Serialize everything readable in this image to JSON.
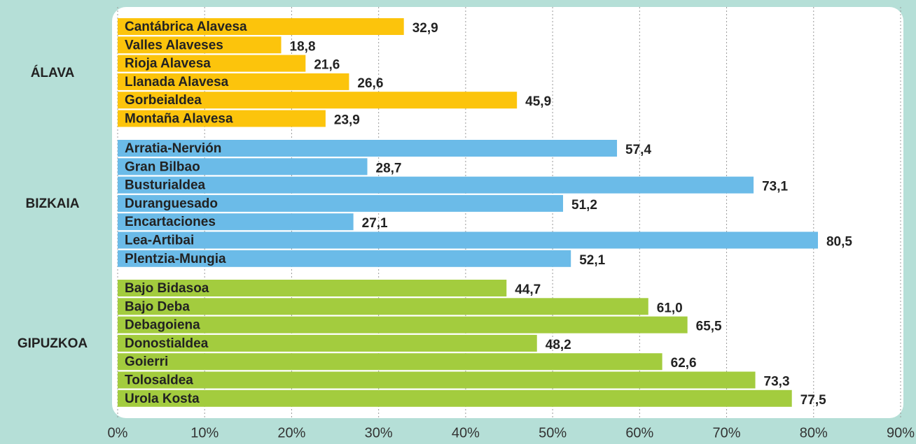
{
  "chart_data": {
    "type": "bar",
    "orientation": "horizontal",
    "groups": [
      {
        "name": "ÁLAVA",
        "color": "#fcc40c",
        "categories": [
          "Cantábrica Alavesa",
          "Valles Alaveses",
          "Rioja Alavesa",
          "Llanada Alavesa",
          "Gorbeialdea",
          "Montaña Alavesa"
        ],
        "values": [
          32.9,
          18.8,
          21.6,
          26.6,
          45.9,
          23.9
        ],
        "value_labels": [
          "32,9",
          "18,8",
          "21,6",
          "26,6",
          "45,9",
          "23,9"
        ]
      },
      {
        "name": "BIZKAIA",
        "color": "#6bbbe8",
        "categories": [
          "Arratia-Nervión",
          "Gran Bilbao",
          "Busturialdea",
          "Duranguesado",
          "Encartaciones",
          "Lea-Artibai",
          "Plentzia-Mungia"
        ],
        "values": [
          57.4,
          28.7,
          73.1,
          51.2,
          27.1,
          80.5,
          52.1
        ],
        "value_labels": [
          "57,4",
          "28,7",
          "73,1",
          "51,2",
          "27,1",
          "80,5",
          "52,1"
        ]
      },
      {
        "name": "GIPUZKOA",
        "color": "#a3cc3e",
        "categories": [
          "Bajo Bidasoa",
          "Bajo Deba",
          "Debagoiena",
          "Donostialdea",
          "Goierri",
          "Tolosaldea",
          "Urola Kosta"
        ],
        "values": [
          44.7,
          61.0,
          65.5,
          48.2,
          62.6,
          73.3,
          77.5
        ],
        "value_labels": [
          "44,7",
          "61,0",
          "65,5",
          "48,2",
          "62,6",
          "73,3",
          "77,5"
        ]
      }
    ],
    "xlim": [
      0,
      90
    ],
    "xticks": [
      {
        "value": 0,
        "label": "0%"
      },
      {
        "value": 10,
        "label": "10%"
      },
      {
        "value": 20,
        "label": "20%"
      },
      {
        "value": 30,
        "label": "30%"
      },
      {
        "value": 40,
        "label": "40%"
      },
      {
        "value": 50,
        "label": "50%"
      },
      {
        "value": 60,
        "label": "60%"
      },
      {
        "value": 70,
        "label": "70%"
      },
      {
        "value": 80,
        "label": "80%"
      },
      {
        "value": 90,
        "label": "90%"
      }
    ],
    "grid": true
  }
}
